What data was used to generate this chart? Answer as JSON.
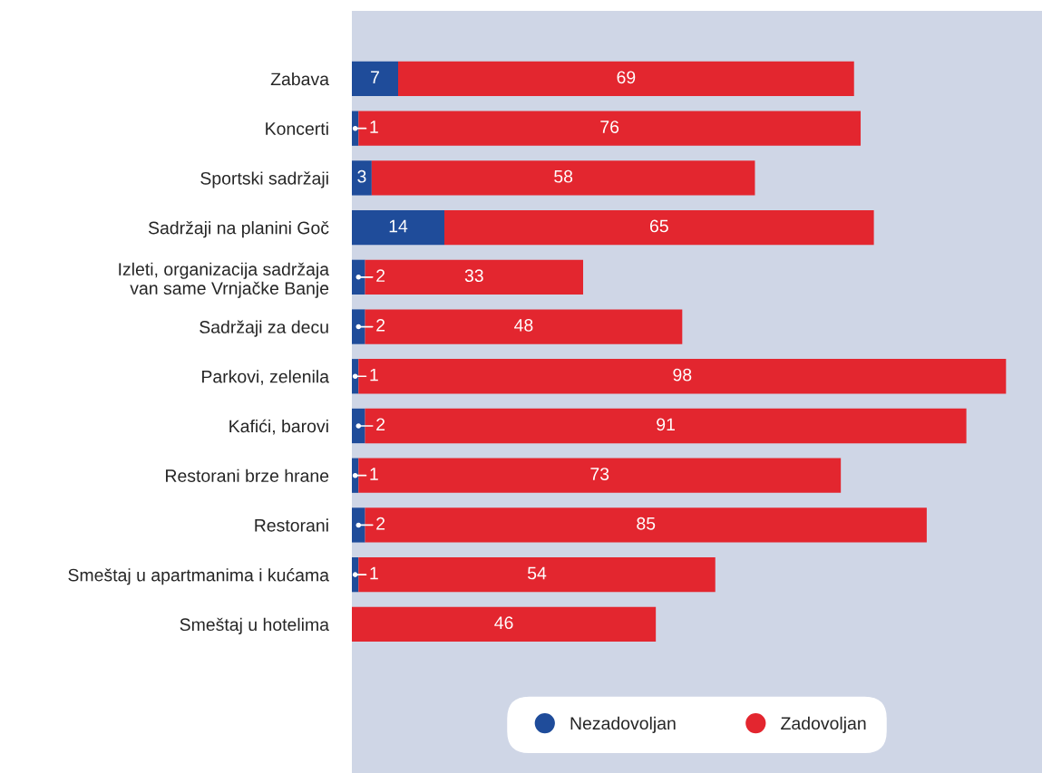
{
  "chart_data": {
    "type": "bar",
    "orientation": "horizontal",
    "stacked": true,
    "tick_labels": "y",
    "legend": "bottom",
    "grid": false,
    "categories": [
      "Zabava",
      "Koncerti",
      "Sportski sadržaji",
      "Sadržaji na planini Goč",
      "Izleti, organizacija sadržaja\nvan same Vrnjačke Banje",
      "Sadržaji za decu",
      "Parkovi, zelenila",
      "Kafići, barovi",
      "Restorani brze hrane",
      "Restorani",
      "Smeštaj u apartmanima i kućama",
      "Smeštaj u hotelima"
    ],
    "series": [
      {
        "name": "Nezadovoljan",
        "color": "#1f4c9a",
        "values": [
          7,
          1,
          3,
          14,
          2,
          2,
          1,
          2,
          1,
          2,
          1,
          0
        ],
        "value_labels": [
          "7",
          "1",
          "3",
          "14",
          "2",
          "2",
          "1",
          "2",
          "1",
          "2",
          "1",
          null
        ]
      },
      {
        "name": "Zadovoljan",
        "color": "#e3262f",
        "values": [
          69,
          76,
          58,
          65,
          33,
          48,
          98,
          91,
          73,
          85,
          54,
          46
        ],
        "value_labels": [
          "69",
          "76",
          "58",
          "65",
          "33",
          "48",
          "98",
          "91",
          "73",
          "85",
          "54",
          "46"
        ]
      }
    ]
  }
}
